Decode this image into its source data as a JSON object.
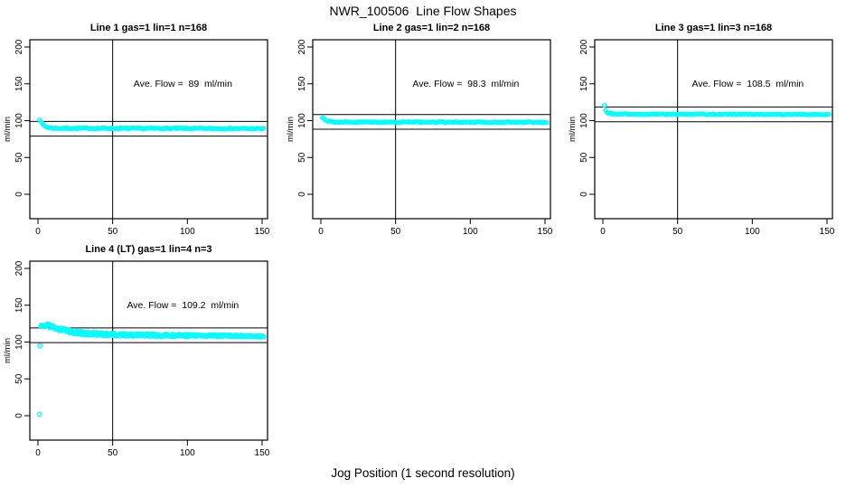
{
  "chart_data": {
    "type": "scatter",
    "suptitle": "NWR_100506  Line Flow Shapes",
    "xlabel": "Jog Position (1 second resolution)",
    "ylabel": "ml/min",
    "x_ticks": [
      0,
      50,
      100,
      150
    ],
    "y_ticks": [
      0,
      50,
      100,
      150,
      200
    ],
    "xlim": [
      -6,
      156
    ],
    "ylim": [
      -33,
      210
    ],
    "vline_x": 50,
    "point_color": "#00ffff",
    "line_color": "#000000",
    "grid": false,
    "legend": "none",
    "panels": [
      {
        "title": "Line 1 gas=1 lin=1 n=168",
        "ave_flow": 89,
        "ave_label": "Ave. Flow =  89  ml/min",
        "ref_lines": [
          99,
          79
        ],
        "n_points": 168,
        "runs": 1,
        "x_start": 1,
        "x_end": 151,
        "anchors": [
          [
            1,
            102
          ],
          [
            1.7,
            100
          ],
          [
            2.5,
            96.5
          ],
          [
            3.5,
            94
          ],
          [
            5,
            92
          ],
          [
            7,
            90.5
          ],
          [
            10,
            89.8
          ],
          [
            20,
            89.6
          ],
          [
            50,
            89.5
          ],
          [
            100,
            89.4
          ],
          [
            151,
            89.2
          ]
        ],
        "noise0": 0.9,
        "noise1": 0.7,
        "outliers": [],
        "annot_xy": [
          97,
          150
        ]
      },
      {
        "title": "Line 2 gas=1 lin=2 n=168",
        "ave_flow": 98.3,
        "ave_label": "Ave. Flow =  98.3  ml/min",
        "ref_lines": [
          108.3,
          88.3
        ],
        "n_points": 168,
        "runs": 1,
        "x_start": 1,
        "x_end": 151,
        "anchors": [
          [
            1,
            103
          ],
          [
            2,
            102.5
          ],
          [
            3,
            101
          ],
          [
            4.5,
            99.5
          ],
          [
            6,
            98.6
          ],
          [
            9,
            98.1
          ],
          [
            15,
            98
          ],
          [
            50,
            97.9
          ],
          [
            100,
            97.9
          ],
          [
            151,
            97.8
          ]
        ],
        "noise0": 0.8,
        "noise1": 0.7,
        "outliers": [],
        "annot_xy": [
          97,
          150
        ]
      },
      {
        "title": "Line 3 gas=1 lin=3 n=168",
        "ave_flow": 108.5,
        "ave_label": "Ave. Flow =  108.5  ml/min",
        "ref_lines": [
          118.5,
          98.5
        ],
        "n_points": 168,
        "runs": 1,
        "x_start": 1,
        "x_end": 151,
        "anchors": [
          [
            1,
            121
          ],
          [
            2,
            113.5
          ],
          [
            3,
            111
          ],
          [
            4.5,
            109.8
          ],
          [
            7,
            109.2
          ],
          [
            12,
            109
          ],
          [
            30,
            108.8
          ],
          [
            80,
            108.7
          ],
          [
            151,
            108.5
          ]
        ],
        "noise0": 0.7,
        "noise1": 0.6,
        "outliers": [],
        "annot_xy": [
          97,
          150
        ]
      },
      {
        "title": "Line 4 (LT) gas=1 lin=4 n=3",
        "ave_flow": 109.2,
        "ave_label": "Ave. Flow =  109.2  ml/min",
        "ref_lines": [
          119.2,
          99.2
        ],
        "n_points": 150,
        "runs": 3,
        "x_start": 2,
        "x_end": 151,
        "anchors": [
          [
            2,
            122
          ],
          [
            4,
            122.5
          ],
          [
            7,
            122.3
          ],
          [
            10,
            120.5
          ],
          [
            13,
            118.5
          ],
          [
            16,
            116.8
          ],
          [
            20,
            115
          ],
          [
            25,
            113.3
          ],
          [
            30,
            112.3
          ],
          [
            36,
            111.3
          ],
          [
            43,
            110.6
          ],
          [
            50,
            110.2
          ],
          [
            60,
            109.7
          ],
          [
            72,
            109.3
          ],
          [
            85,
            109
          ],
          [
            100,
            108.9
          ],
          [
            115,
            108.7
          ],
          [
            130,
            108.4
          ],
          [
            140,
            108.2
          ],
          [
            151,
            107.6
          ]
        ],
        "noise0": 2.8,
        "noise1": 1.1,
        "outliers": [
          [
            1,
            2
          ],
          [
            1.3,
            95
          ]
        ],
        "annot_xy": [
          97,
          150
        ]
      }
    ]
  }
}
